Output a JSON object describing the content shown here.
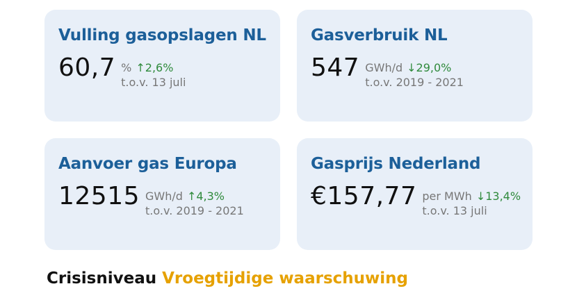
{
  "cards": [
    {
      "title": "Vulling gasopslagen NL",
      "value": "60,7",
      "unit": "%",
      "change": "↑2,6%",
      "comparison": "t.o.v. 13 juli"
    },
    {
      "title": "Gasverbruik NL",
      "value": "547",
      "unit": "GWh/d",
      "change": "↓29,0%",
      "comparison": "t.o.v. 2019 - 2021"
    },
    {
      "title": "Aanvoer gas Europa",
      "value": "12515",
      "unit": "GWh/d",
      "change": "↑4,3%",
      "comparison": "t.o.v. 2019 - 2021"
    },
    {
      "title": "Gasprijs Nederland",
      "value": "€157,77",
      "unit": "per MWh",
      "change": "↓13,4%",
      "comparison": "t.o.v. 13 juli"
    }
  ],
  "footer": {
    "label": "Crisisniveau",
    "status": "Vroegtijdige waarschuwing"
  }
}
